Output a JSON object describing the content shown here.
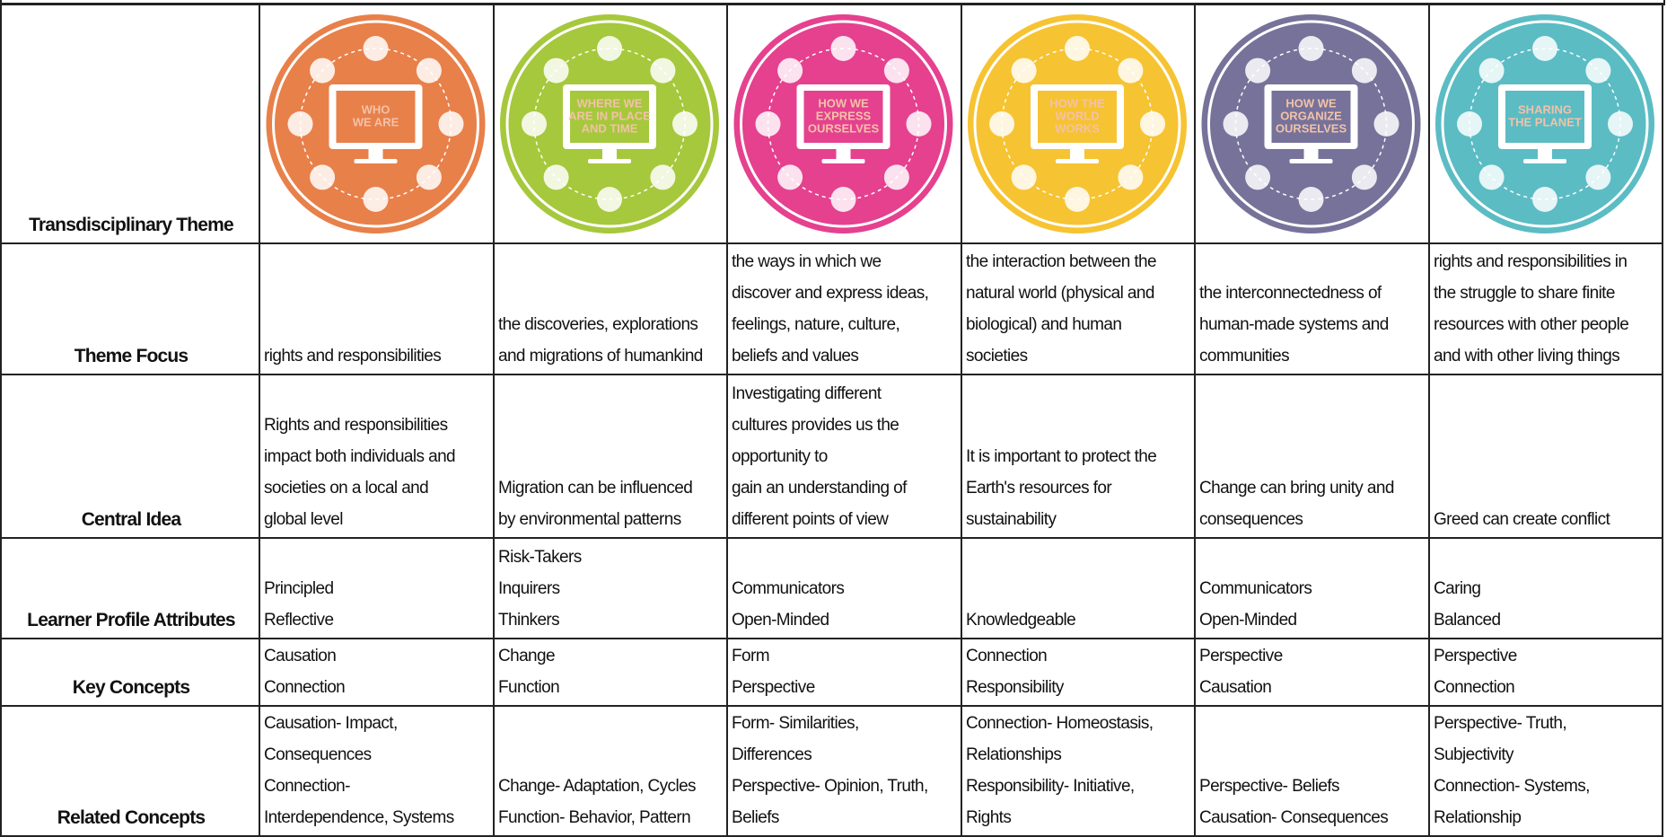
{
  "row_headers": [
    "Transdisciplinary Theme",
    "Theme Focus",
    "Central Idea",
    "Learner Profile Attributes",
    "Key Concepts",
    "Related Concepts"
  ],
  "themes": [
    {
      "title_lines": [
        "WHO",
        "WE ARE"
      ],
      "color": "#e8804a"
    },
    {
      "title_lines": [
        "WHERE WE",
        "ARE IN PLACE",
        "AND TIME"
      ],
      "color": "#a6c83c"
    },
    {
      "title_lines": [
        "HOW WE",
        "EXPRESS",
        "OURSELVES"
      ],
      "color": "#e5418f"
    },
    {
      "title_lines": [
        "HOW THE",
        "WORLD",
        "WORKS"
      ],
      "color": "#f6c332"
    },
    {
      "title_lines": [
        "HOW WE",
        "ORGANIZE",
        "OURSELVES"
      ],
      "color": "#76729a"
    },
    {
      "title_lines": [
        "SHARING",
        "THE PLANET"
      ],
      "color": "#5bbcc4"
    }
  ],
  "rows": [
    [
      [
        "rights and responsibilities"
      ],
      [
        "the discoveries, explorations",
        "and migrations of humankind"
      ],
      [
        "the ways in which we",
        "discover and express ideas,",
        "feelings, nature, culture,",
        "beliefs and values"
      ],
      [
        "the interaction between the",
        "natural world (physical and",
        "biological) and human",
        "societies"
      ],
      [
        "the interconnectedness of",
        "human-made systems and",
        "communities"
      ],
      [
        "rights and responsibilities in",
        "the struggle to share finite",
        "resources with other people",
        "and with other living things"
      ]
    ],
    [
      [
        "Rights and responsibilities",
        "impact both individuals and",
        "societies on a local and",
        "global level"
      ],
      [
        "Migration can be influenced",
        "by environmental patterns"
      ],
      [
        "Investigating different",
        "cultures provides us the",
        "opportunity to",
        "gain an understanding of",
        "different points of view"
      ],
      [
        "It is important to protect the",
        "Earth's resources for",
        "sustainability"
      ],
      [
        "Change can bring unity and",
        "consequences"
      ],
      [
        "Greed can create conflict"
      ]
    ],
    [
      [
        "Principled",
        "Reflective"
      ],
      [
        "Risk-Takers",
        "Inquirers",
        "Thinkers"
      ],
      [
        "Communicators",
        "Open-Minded"
      ],
      [
        "Knowledgeable"
      ],
      [
        "Communicators",
        "Open-Minded"
      ],
      [
        "Caring",
        "Balanced"
      ]
    ],
    [
      [
        "Causation",
        "Connection"
      ],
      [
        "Change",
        "Function"
      ],
      [
        "Form",
        "Perspective"
      ],
      [
        "Connection",
        "Responsibility"
      ],
      [
        "Perspective",
        "Causation"
      ],
      [
        "Perspective",
        "Connection"
      ]
    ],
    [
      [
        "Causation- Impact,",
        "Consequences",
        "Connection-",
        "Interdependence, Systems"
      ],
      [
        "Change- Adaptation, Cycles",
        "Function- Behavior, Pattern"
      ],
      [
        "Form- Similarities,",
        "Differences",
        "Perspective- Opinion, Truth,",
        "Beliefs"
      ],
      [
        "Connection- Homeostasis,",
        "Relationships",
        "Responsibility- Initiative,",
        "Rights"
      ],
      [
        "Perspective- Beliefs",
        "Causation- Consequences"
      ],
      [
        "Perspective- Truth,",
        "Subjectivity",
        "Connection- Systems,",
        "Relationship"
      ]
    ]
  ]
}
